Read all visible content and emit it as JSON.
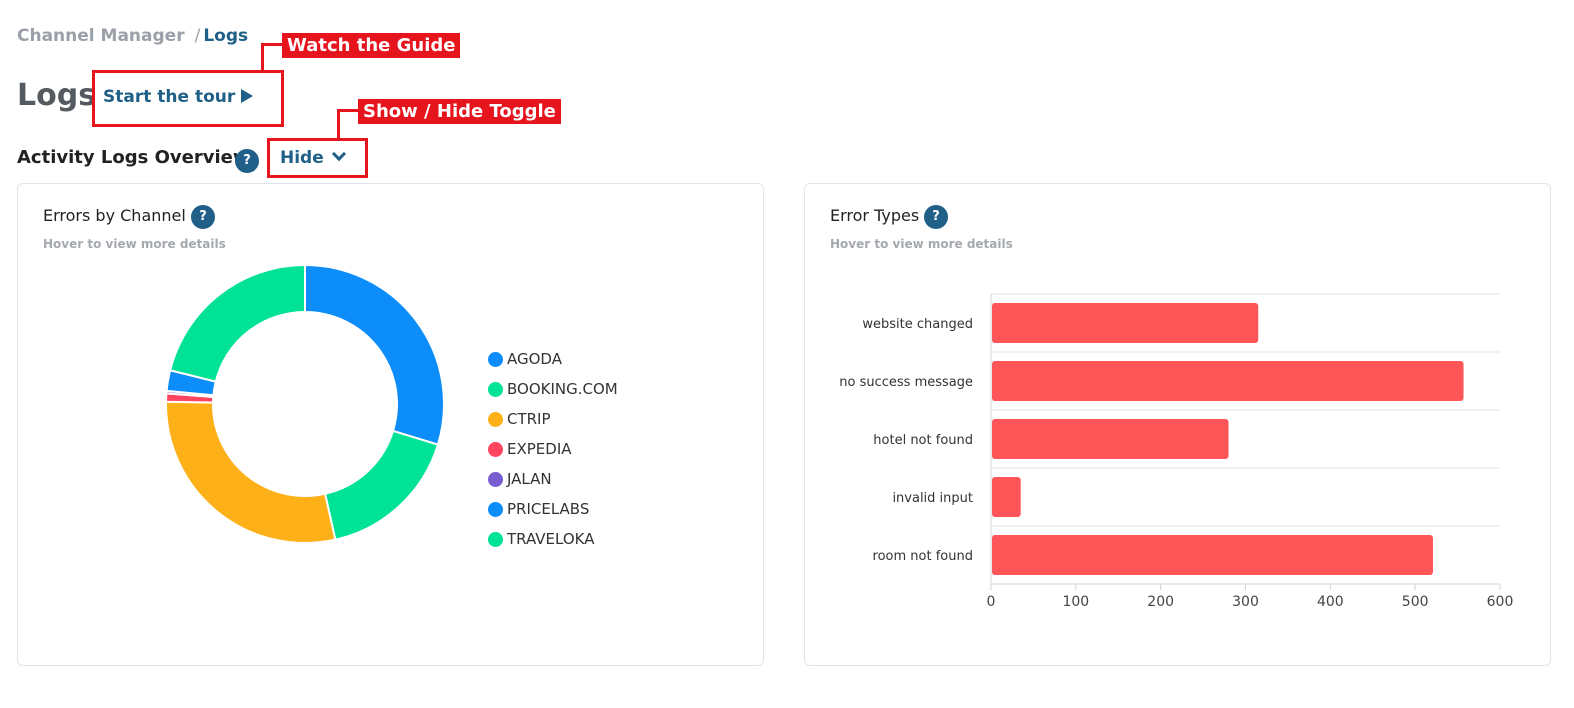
{
  "breadcrumb": {
    "parent": "Channel Manager",
    "separator": "/",
    "current": "Logs"
  },
  "page_title": "Logs",
  "tour": {
    "label": "Start the tour",
    "icon": "play-icon"
  },
  "callouts": {
    "guide": "Watch the Guide",
    "toggle": "Show / Hide Toggle"
  },
  "section": {
    "title": "Activity Logs Overview",
    "help": "?",
    "toggle_label": "Hide",
    "toggle_icon": "chevron-down-icon"
  },
  "errors_by_channel": {
    "title": "Errors by Channel",
    "help": "?",
    "subtitle": "Hover to view more details"
  },
  "error_types": {
    "title": "Error Types",
    "help": "?",
    "subtitle": "Hover to view more details"
  },
  "colors": {
    "accent": "#1f5f88",
    "annotation": "#e6141c",
    "bar": "#fe5559"
  },
  "chart_data": [
    {
      "type": "pie",
      "variant": "donut",
      "title": "Errors by Channel",
      "legend_position": "right",
      "slices": [
        {
          "label": "AGODA",
          "value": 31,
          "color": "#0d8df9"
        },
        {
          "label": "BOOKING.COM",
          "value": 17.5,
          "color": "#00e296"
        },
        {
          "label": "CTRIP",
          "value": 30,
          "color": "#feb019"
        },
        {
          "label": "EXPEDIA",
          "value": 1,
          "color": "#ff4560"
        },
        {
          "label": "JALAN",
          "value": 0.3,
          "color": "#775dd0"
        },
        {
          "label": "PRICELABS",
          "value": 2.5,
          "color": "#0d8df9"
        },
        {
          "label": "TRAVELOKA",
          "value": 22,
          "color": "#00e296"
        }
      ]
    },
    {
      "type": "bar",
      "orientation": "horizontal",
      "title": "Error Types",
      "categories": [
        "website changed",
        "no success message",
        "hotel not found",
        "invalid input",
        "room not found"
      ],
      "values": [
        315,
        557,
        280,
        35,
        521
      ],
      "xlim": [
        0,
        600
      ],
      "xticks": [
        "0",
        "100",
        "200",
        "300",
        "400",
        "500",
        "600"
      ],
      "grid": true
    }
  ]
}
